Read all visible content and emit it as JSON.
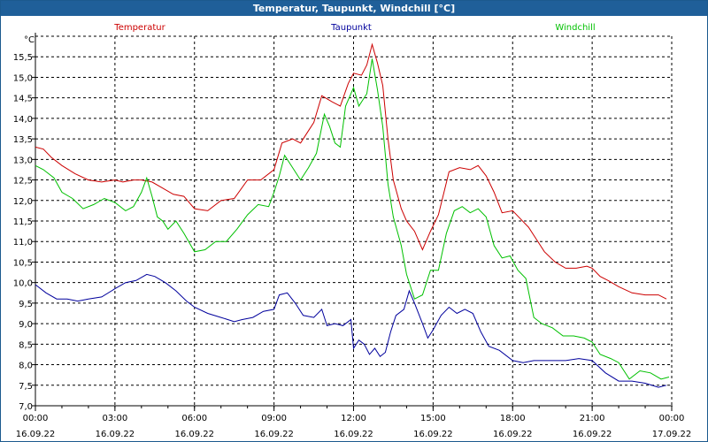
{
  "window": {
    "title": "Temperatur, Taupunkt, Windchill [°C]"
  },
  "chart_data": {
    "type": "line",
    "title": "Temperatur, Taupunkt, Windchill [°C]",
    "ylabel": "°C",
    "ylim": [
      7.0,
      16.0
    ],
    "yticks": [
      "7,0",
      "7,5",
      "8,0",
      "8,5",
      "9,0",
      "9,5",
      "10,0",
      "10,5",
      "11,0",
      "11,5",
      "12,0",
      "12,5",
      "13,0",
      "13,5",
      "14,0",
      "14,5",
      "15,0",
      "15,5"
    ],
    "xlim": [
      0,
      24
    ],
    "xticks": [
      {
        "time": "00:00",
        "date": "16.09.22",
        "h": 0
      },
      {
        "time": "03:00",
        "date": "16.09.22",
        "h": 3
      },
      {
        "time": "06:00",
        "date": "16.09.22",
        "h": 6
      },
      {
        "time": "09:00",
        "date": "16.09.22",
        "h": 9
      },
      {
        "time": "12:00",
        "date": "16.09.22",
        "h": 12
      },
      {
        "time": "15:00",
        "date": "16.09.22",
        "h": 15
      },
      {
        "time": "18:00",
        "date": "16.09.22",
        "h": 18
      },
      {
        "time": "21:00",
        "date": "16.09.22",
        "h": 21
      },
      {
        "time": "00:00",
        "date": "17.09.22",
        "h": 24
      }
    ],
    "grid": true,
    "legend_position": "top",
    "series": [
      {
        "name": "Temperatur",
        "color": "#cc0000",
        "points": [
          [
            0,
            13.3
          ],
          [
            0.3,
            13.25
          ],
          [
            0.6,
            13.05
          ],
          [
            1.0,
            12.85
          ],
          [
            1.5,
            12.65
          ],
          [
            2.0,
            12.5
          ],
          [
            2.5,
            12.45
          ],
          [
            3.0,
            12.5
          ],
          [
            3.3,
            12.45
          ],
          [
            3.7,
            12.5
          ],
          [
            4.0,
            12.5
          ],
          [
            4.4,
            12.45
          ],
          [
            4.8,
            12.3
          ],
          [
            5.2,
            12.15
          ],
          [
            5.6,
            12.1
          ],
          [
            6.0,
            11.8
          ],
          [
            6.5,
            11.75
          ],
          [
            7.0,
            12.0
          ],
          [
            7.5,
            12.05
          ],
          [
            8.0,
            12.5
          ],
          [
            8.5,
            12.5
          ],
          [
            9.0,
            12.75
          ],
          [
            9.3,
            13.4
          ],
          [
            9.7,
            13.5
          ],
          [
            10.0,
            13.4
          ],
          [
            10.3,
            13.7
          ],
          [
            10.5,
            13.9
          ],
          [
            10.8,
            14.55
          ],
          [
            11.2,
            14.4
          ],
          [
            11.5,
            14.3
          ],
          [
            11.8,
            14.85
          ],
          [
            12.0,
            15.1
          ],
          [
            12.3,
            15.05
          ],
          [
            12.5,
            15.3
          ],
          [
            12.7,
            15.8
          ],
          [
            12.9,
            15.35
          ],
          [
            13.1,
            14.8
          ],
          [
            13.3,
            13.5
          ],
          [
            13.5,
            12.5
          ],
          [
            13.8,
            11.8
          ],
          [
            14.0,
            11.5
          ],
          [
            14.3,
            11.25
          ],
          [
            14.6,
            10.8
          ],
          [
            14.9,
            11.25
          ],
          [
            15.2,
            11.65
          ],
          [
            15.6,
            12.7
          ],
          [
            16.0,
            12.8
          ],
          [
            16.4,
            12.75
          ],
          [
            16.7,
            12.85
          ],
          [
            17.0,
            12.6
          ],
          [
            17.3,
            12.2
          ],
          [
            17.6,
            11.7
          ],
          [
            18.0,
            11.75
          ],
          [
            18.3,
            11.55
          ],
          [
            18.6,
            11.35
          ],
          [
            18.9,
            11.05
          ],
          [
            19.2,
            10.75
          ],
          [
            19.6,
            10.5
          ],
          [
            20.0,
            10.35
          ],
          [
            20.4,
            10.35
          ],
          [
            20.8,
            10.4
          ],
          [
            21.0,
            10.35
          ],
          [
            21.3,
            10.15
          ],
          [
            21.6,
            10.05
          ],
          [
            22.0,
            9.9
          ],
          [
            22.5,
            9.75
          ],
          [
            23.0,
            9.7
          ],
          [
            23.5,
            9.7
          ],
          [
            23.8,
            9.6
          ]
        ]
      },
      {
        "name": "Taupunkt",
        "color": "#00009c",
        "points": [
          [
            0,
            9.95
          ],
          [
            0.4,
            9.75
          ],
          [
            0.8,
            9.6
          ],
          [
            1.2,
            9.6
          ],
          [
            1.6,
            9.55
          ],
          [
            2.0,
            9.6
          ],
          [
            2.5,
            9.65
          ],
          [
            3.0,
            9.85
          ],
          [
            3.4,
            10.0
          ],
          [
            3.8,
            10.05
          ],
          [
            4.2,
            10.2
          ],
          [
            4.5,
            10.15
          ],
          [
            4.9,
            10.0
          ],
          [
            5.3,
            9.8
          ],
          [
            5.7,
            9.55
          ],
          [
            6.0,
            9.4
          ],
          [
            6.5,
            9.25
          ],
          [
            7.0,
            9.15
          ],
          [
            7.5,
            9.05
          ],
          [
            7.8,
            9.1
          ],
          [
            8.2,
            9.15
          ],
          [
            8.6,
            9.3
          ],
          [
            9.0,
            9.35
          ],
          [
            9.2,
            9.7
          ],
          [
            9.5,
            9.75
          ],
          [
            9.8,
            9.5
          ],
          [
            10.1,
            9.2
          ],
          [
            10.5,
            9.15
          ],
          [
            10.8,
            9.35
          ],
          [
            11.0,
            8.95
          ],
          [
            11.3,
            9.0
          ],
          [
            11.6,
            8.95
          ],
          [
            11.9,
            9.1
          ],
          [
            12.0,
            8.4
          ],
          [
            12.2,
            8.6
          ],
          [
            12.4,
            8.5
          ],
          [
            12.6,
            8.25
          ],
          [
            12.8,
            8.4
          ],
          [
            13.0,
            8.2
          ],
          [
            13.2,
            8.3
          ],
          [
            13.4,
            8.8
          ],
          [
            13.6,
            9.2
          ],
          [
            13.9,
            9.35
          ],
          [
            14.1,
            9.8
          ],
          [
            14.3,
            9.5
          ],
          [
            14.6,
            9.0
          ],
          [
            14.8,
            8.65
          ],
          [
            15.0,
            8.85
          ],
          [
            15.3,
            9.2
          ],
          [
            15.6,
            9.4
          ],
          [
            15.9,
            9.25
          ],
          [
            16.2,
            9.35
          ],
          [
            16.5,
            9.25
          ],
          [
            16.8,
            8.8
          ],
          [
            17.1,
            8.45
          ],
          [
            17.5,
            8.35
          ],
          [
            18.0,
            8.1
          ],
          [
            18.4,
            8.05
          ],
          [
            18.8,
            8.1
          ],
          [
            19.2,
            8.1
          ],
          [
            19.6,
            8.1
          ],
          [
            20.0,
            8.1
          ],
          [
            20.5,
            8.15
          ],
          [
            21.0,
            8.1
          ],
          [
            21.5,
            7.8
          ],
          [
            22.0,
            7.6
          ],
          [
            22.5,
            7.6
          ],
          [
            23.0,
            7.55
          ],
          [
            23.5,
            7.45
          ],
          [
            23.8,
            7.5
          ]
        ]
      },
      {
        "name": "Windchill",
        "color": "#00c000",
        "points": [
          [
            0,
            12.85
          ],
          [
            0.3,
            12.75
          ],
          [
            0.7,
            12.55
          ],
          [
            1.0,
            12.2
          ],
          [
            1.4,
            12.05
          ],
          [
            1.8,
            11.8
          ],
          [
            2.2,
            11.9
          ],
          [
            2.6,
            12.05
          ],
          [
            3.0,
            11.95
          ],
          [
            3.4,
            11.75
          ],
          [
            3.7,
            11.85
          ],
          [
            4.0,
            12.2
          ],
          [
            4.2,
            12.55
          ],
          [
            4.4,
            12.1
          ],
          [
            4.6,
            11.6
          ],
          [
            4.8,
            11.5
          ],
          [
            5.0,
            11.3
          ],
          [
            5.3,
            11.5
          ],
          [
            5.6,
            11.2
          ],
          [
            6.0,
            10.75
          ],
          [
            6.4,
            10.8
          ],
          [
            6.8,
            11.0
          ],
          [
            7.2,
            11.0
          ],
          [
            7.6,
            11.3
          ],
          [
            8.0,
            11.65
          ],
          [
            8.4,
            11.9
          ],
          [
            8.8,
            11.85
          ],
          [
            9.0,
            12.2
          ],
          [
            9.2,
            12.6
          ],
          [
            9.4,
            13.1
          ],
          [
            9.7,
            12.8
          ],
          [
            10.0,
            12.5
          ],
          [
            10.3,
            12.8
          ],
          [
            10.6,
            13.15
          ],
          [
            10.9,
            14.1
          ],
          [
            11.1,
            13.8
          ],
          [
            11.3,
            13.4
          ],
          [
            11.5,
            13.3
          ],
          [
            11.7,
            14.3
          ],
          [
            12.0,
            14.75
          ],
          [
            12.2,
            14.3
          ],
          [
            12.5,
            14.6
          ],
          [
            12.7,
            15.45
          ],
          [
            12.9,
            14.7
          ],
          [
            13.1,
            13.8
          ],
          [
            13.3,
            12.4
          ],
          [
            13.5,
            11.6
          ],
          [
            13.8,
            10.9
          ],
          [
            14.0,
            10.2
          ],
          [
            14.3,
            9.6
          ],
          [
            14.6,
            9.7
          ],
          [
            14.9,
            10.3
          ],
          [
            15.2,
            10.3
          ],
          [
            15.5,
            11.2
          ],
          [
            15.8,
            11.75
          ],
          [
            16.1,
            11.85
          ],
          [
            16.4,
            11.7
          ],
          [
            16.7,
            11.8
          ],
          [
            17.0,
            11.6
          ],
          [
            17.3,
            10.9
          ],
          [
            17.6,
            10.6
          ],
          [
            17.9,
            10.65
          ],
          [
            18.2,
            10.3
          ],
          [
            18.5,
            10.1
          ],
          [
            18.8,
            9.15
          ],
          [
            19.1,
            9.0
          ],
          [
            19.5,
            8.9
          ],
          [
            19.9,
            8.7
          ],
          [
            20.3,
            8.7
          ],
          [
            20.7,
            8.65
          ],
          [
            21.0,
            8.55
          ],
          [
            21.3,
            8.25
          ],
          [
            21.7,
            8.15
          ],
          [
            22.0,
            8.05
          ],
          [
            22.4,
            7.65
          ],
          [
            22.8,
            7.85
          ],
          [
            23.2,
            7.8
          ],
          [
            23.6,
            7.65
          ],
          [
            23.9,
            7.7
          ]
        ]
      }
    ]
  }
}
